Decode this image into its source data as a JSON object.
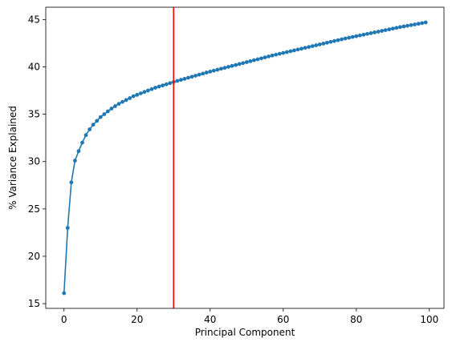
{
  "chart_data": {
    "type": "line",
    "title": "",
    "xlabel": "Principal Component",
    "ylabel": "% Variance Explained",
    "xlim": [
      -5,
      104
    ],
    "ylim": [
      14.5,
      46.3
    ],
    "xticks": [
      0,
      20,
      40,
      60,
      80,
      100
    ],
    "yticks": [
      15,
      20,
      25,
      30,
      35,
      40,
      45
    ],
    "grid": false,
    "legend": "none",
    "series_color": "#1f77b4",
    "vline": {
      "x": 30,
      "color": "#ff0000"
    },
    "series": [
      {
        "x": [
          0,
          1,
          2,
          3,
          4,
          5,
          6,
          7,
          8,
          9,
          10,
          11,
          12,
          13,
          14,
          15,
          16,
          17,
          18,
          19,
          20,
          21,
          22,
          23,
          24,
          25,
          26,
          27,
          28,
          29,
          30,
          31,
          32,
          33,
          34,
          35,
          36,
          37,
          38,
          39,
          40,
          41,
          42,
          43,
          44,
          45,
          46,
          47,
          48,
          49,
          50,
          51,
          52,
          53,
          54,
          55,
          56,
          57,
          58,
          59,
          60,
          61,
          62,
          63,
          64,
          65,
          66,
          67,
          68,
          69,
          70,
          71,
          72,
          73,
          74,
          75,
          76,
          77,
          78,
          79,
          80,
          81,
          82,
          83,
          84,
          85,
          86,
          87,
          88,
          89,
          90,
          91,
          92,
          93,
          94,
          95,
          96,
          97,
          98,
          99
        ],
        "values": [
          16.1,
          23.0,
          27.8,
          30.1,
          31.1,
          32.0,
          32.8,
          33.4,
          33.9,
          34.3,
          34.7,
          35.0,
          35.3,
          35.6,
          35.85,
          36.1,
          36.3,
          36.5,
          36.7,
          36.9,
          37.05,
          37.2,
          37.35,
          37.5,
          37.65,
          37.8,
          37.92,
          38.04,
          38.16,
          38.28,
          38.4,
          38.52,
          38.63,
          38.74,
          38.85,
          38.96,
          39.07,
          39.18,
          39.29,
          39.4,
          39.5,
          39.6,
          39.7,
          39.8,
          39.9,
          40.0,
          40.1,
          40.2,
          40.3,
          40.4,
          40.5,
          40.6,
          40.7,
          40.8,
          40.9,
          41.0,
          41.1,
          41.2,
          41.29,
          41.38,
          41.47,
          41.56,
          41.65,
          41.74,
          41.83,
          41.92,
          42.01,
          42.1,
          42.19,
          42.28,
          42.37,
          42.46,
          42.55,
          42.64,
          42.73,
          42.82,
          42.91,
          43.0,
          43.08,
          43.16,
          43.24,
          43.32,
          43.4,
          43.48,
          43.56,
          43.64,
          43.72,
          43.8,
          43.88,
          43.96,
          44.04,
          44.12,
          44.2,
          44.27,
          44.34,
          44.41,
          44.48,
          44.55,
          44.62,
          44.69
        ]
      }
    ]
  }
}
